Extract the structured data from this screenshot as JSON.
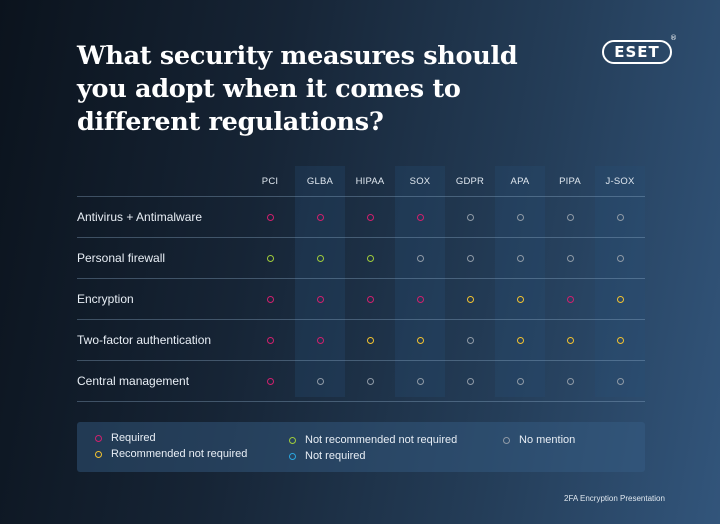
{
  "title": "What security measures should you adopt when it comes to different regulations?",
  "logo_text": "ESET",
  "logo_mark": "®",
  "colors": {
    "required": "#d0206e",
    "recommended": "#f2c230",
    "not_recommended": "#9fcc3b",
    "not_required": "#2aa6e0",
    "no_mention": "#8f9aa6"
  },
  "table": {
    "headers": [
      "PCI",
      "GLBA",
      "HIPAA",
      "SOX",
      "GDPR",
      "APA",
      "PIPA",
      "J-SOX"
    ],
    "rows": [
      {
        "label": "Antivirus + Antimalware",
        "cells": [
          "required",
          "required",
          "required",
          "required",
          "no_mention",
          "no_mention",
          "no_mention",
          "no_mention"
        ]
      },
      {
        "label": "Personal firewall",
        "cells": [
          "not_recommended",
          "not_recommended",
          "not_recommended",
          "no_mention",
          "no_mention",
          "no_mention",
          "no_mention",
          "no_mention"
        ]
      },
      {
        "label": "Encryption",
        "cells": [
          "required",
          "required",
          "required",
          "required",
          "recommended",
          "recommended",
          "required",
          "recommended"
        ]
      },
      {
        "label": "Two-factor authentication",
        "cells": [
          "required",
          "required",
          "recommended",
          "recommended",
          "no_mention",
          "recommended",
          "recommended",
          "recommended"
        ]
      },
      {
        "label": "Central management",
        "cells": [
          "required",
          "no_mention",
          "no_mention",
          "no_mention",
          "no_mention",
          "no_mention",
          "no_mention",
          "no_mention"
        ]
      }
    ]
  },
  "legend": {
    "required": "Required",
    "recommended": "Recommended not required",
    "not_recommended": "Not recommended not required",
    "not_required": "Not required",
    "no_mention": "No mention"
  },
  "footer": "2FA Encryption Presentation"
}
